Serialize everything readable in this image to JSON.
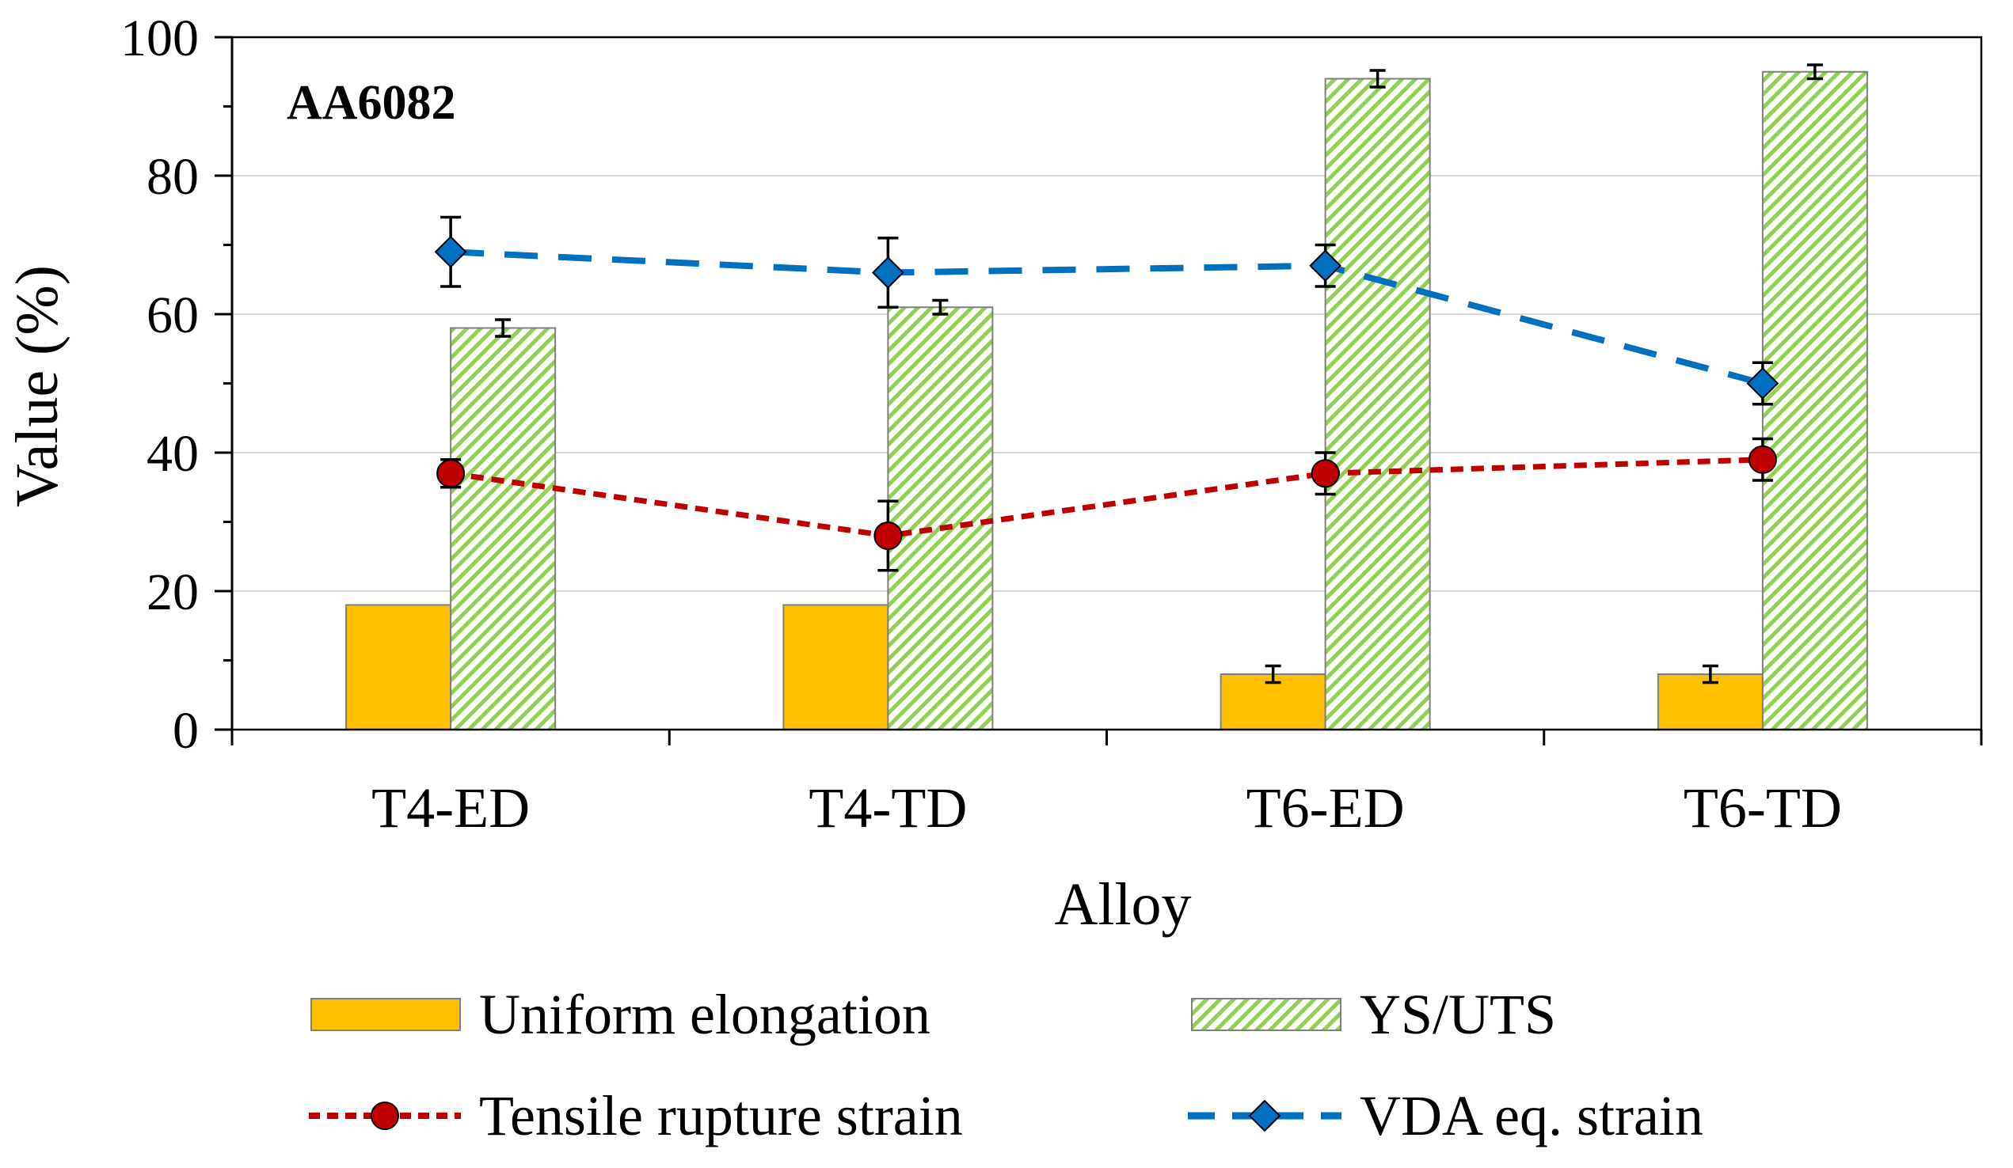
{
  "chart_data": {
    "type": "bar",
    "title": "AA6082",
    "xlabel": "Alloy",
    "ylabel": "Value (%)",
    "ylim": [
      0,
      100
    ],
    "yticks": [
      0,
      20,
      40,
      60,
      80,
      100
    ],
    "grid": true,
    "legend_position": "bottom",
    "categories": [
      "T4-ED",
      "T4-TD",
      "T6-ED",
      "T6-TD"
    ],
    "series": [
      {
        "name": "Uniform elongation",
        "kind": "bar",
        "color": "#FFC000",
        "values": [
          18,
          18,
          8,
          8
        ],
        "errors": [
          0,
          0,
          1.2,
          1.2
        ]
      },
      {
        "name": "YS/UTS",
        "kind": "bar-hatched",
        "color": "#92D050",
        "values": [
          58,
          61,
          94,
          95
        ],
        "errors": [
          1.2,
          1.0,
          1.2,
          1.0
        ]
      },
      {
        "name": "Tensile rupture strain",
        "kind": "line",
        "color": "#C00000",
        "marker": "circle",
        "values": [
          37,
          28,
          37,
          39
        ],
        "errors": [
          2,
          5,
          3,
          3
        ]
      },
      {
        "name": "VDA eq. strain",
        "kind": "line",
        "color": "#0070C0",
        "marker": "diamond",
        "values": [
          69,
          66,
          67,
          50
        ],
        "errors": [
          5,
          5,
          3,
          3
        ]
      }
    ]
  }
}
